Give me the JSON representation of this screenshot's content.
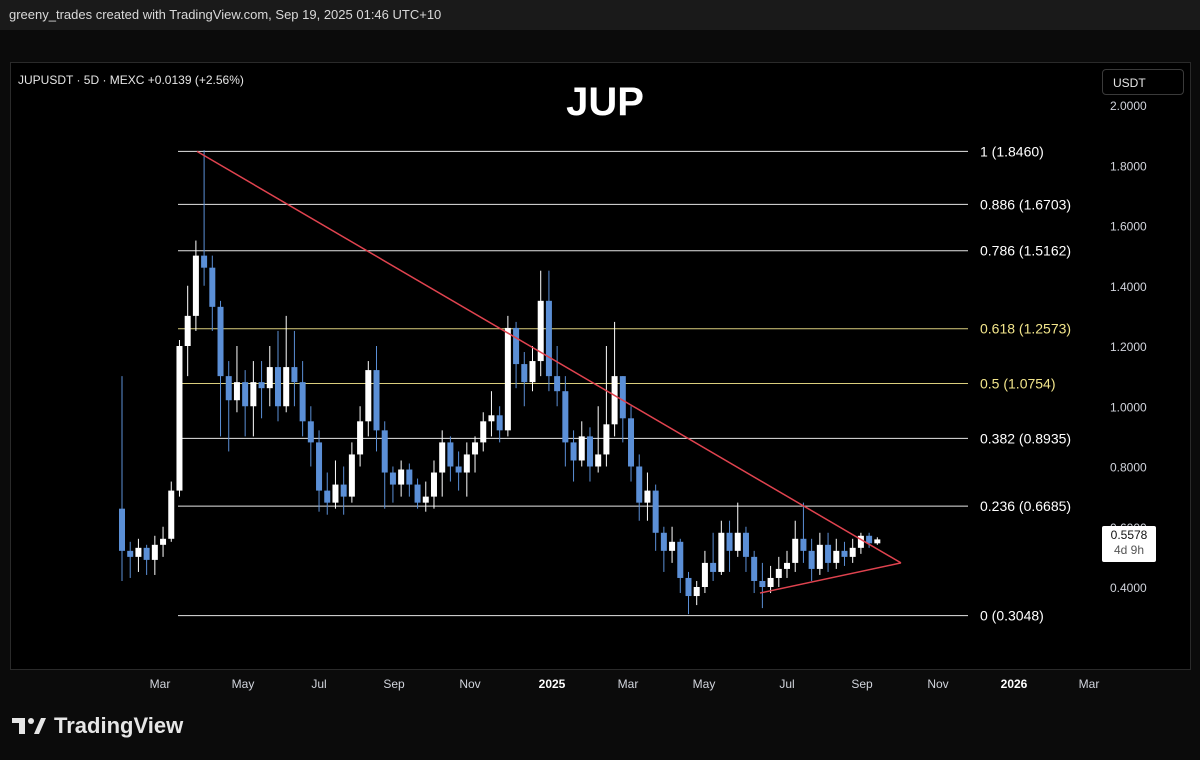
{
  "header": {
    "caption": "greeny_trades created with TradingView.com, Sep 19, 2025 01:46 UTC+10"
  },
  "chart_header": {
    "symbol_line": "JUPUSDT · 5D · MEXC  +0.0139 (+2.56%)"
  },
  "price_scale": {
    "unit_label": "USDT"
  },
  "last_price": {
    "value": "0.5578",
    "countdown": "4d 9h"
  },
  "brand": {
    "name": "TradingView"
  },
  "colors": {
    "up": "#ffffff",
    "down": "#5b8fd6",
    "trendline": "#e0434f",
    "fib_white": "#ffffff",
    "fib_yellow": "#f2e58b"
  },
  "chart_data": {
    "type": "candlestick",
    "title": "JUP",
    "y_axis": {
      "ticks": [
        "2.0000",
        "1.8000",
        "1.6000",
        "1.4000",
        "1.2000",
        "1.0000",
        "0.8000",
        "0.6000",
        "0.4000"
      ],
      "ylim": [
        0.2,
        2.05
      ]
    },
    "x_axis": {
      "ticks": [
        "Mar",
        "May",
        "Jul",
        "Sep",
        "Nov",
        "2025",
        "Mar",
        "May",
        "Jul",
        "Sep",
        "Nov",
        "2026",
        "Mar"
      ]
    },
    "fib_levels": [
      {
        "ratio": "1",
        "price": 1.846,
        "label": "1 (1.8460)"
      },
      {
        "ratio": "0.886",
        "price": 1.6703,
        "label": "0.886 (1.6703)"
      },
      {
        "ratio": "0.786",
        "price": 1.5162,
        "label": "0.786 (1.5162)"
      },
      {
        "ratio": "0.618",
        "price": 1.2573,
        "label": "0.618 (1.2573)"
      },
      {
        "ratio": "0.5",
        "price": 1.0754,
        "label": "0.5 (1.0754)"
      },
      {
        "ratio": "0.382",
        "price": 0.8935,
        "label": "0.382 (0.8935)"
      },
      {
        "ratio": "0.236",
        "price": 0.6685,
        "label": "0.236 (0.6685)"
      },
      {
        "ratio": "0",
        "price": 0.3048,
        "label": "0 (0.3048)"
      }
    ],
    "trendlines": [
      {
        "name": "descending resistance",
        "from": [
          0,
          1.846
        ],
        "to": [
          1,
          0.48
        ]
      },
      {
        "name": "rising support",
        "from": [
          0,
          0.38
        ],
        "to": [
          1,
          0.48
        ]
      }
    ],
    "candles": [
      [
        0.66,
        0.52,
        1.1,
        0.42
      ],
      [
        0.52,
        0.5,
        0.55,
        0.43
      ],
      [
        0.5,
        0.53,
        0.56,
        0.45
      ],
      [
        0.53,
        0.49,
        0.54,
        0.44
      ],
      [
        0.49,
        0.54,
        0.57,
        0.44
      ],
      [
        0.54,
        0.56,
        0.6,
        0.5
      ],
      [
        0.56,
        0.72,
        0.75,
        0.55
      ],
      [
        0.72,
        1.2,
        1.22,
        0.7
      ],
      [
        1.2,
        1.3,
        1.4,
        1.1
      ],
      [
        1.3,
        1.5,
        1.55,
        1.25
      ],
      [
        1.5,
        1.46,
        1.85,
        1.4
      ],
      [
        1.46,
        1.33,
        1.5,
        1.25
      ],
      [
        1.33,
        1.1,
        1.35,
        0.9
      ],
      [
        1.1,
        1.02,
        1.15,
        0.85
      ],
      [
        1.02,
        1.08,
        1.2,
        0.98
      ],
      [
        1.08,
        1.0,
        1.12,
        0.9
      ],
      [
        1.0,
        1.08,
        1.15,
        0.9
      ],
      [
        1.08,
        1.06,
        1.15,
        0.96
      ],
      [
        1.06,
        1.13,
        1.2,
        1.0
      ],
      [
        1.13,
        1.0,
        1.25,
        0.95
      ],
      [
        1.0,
        1.13,
        1.3,
        0.98
      ],
      [
        1.13,
        1.08,
        1.25,
        1.0
      ],
      [
        1.08,
        0.95,
        1.15,
        0.9
      ],
      [
        0.95,
        0.88,
        1.0,
        0.8
      ],
      [
        0.88,
        0.72,
        0.92,
        0.65
      ],
      [
        0.72,
        0.68,
        0.78,
        0.64
      ],
      [
        0.68,
        0.74,
        0.82,
        0.66
      ],
      [
        0.74,
        0.7,
        0.8,
        0.64
      ],
      [
        0.7,
        0.84,
        0.88,
        0.68
      ],
      [
        0.84,
        0.95,
        1.0,
        0.8
      ],
      [
        0.95,
        1.12,
        1.15,
        0.9
      ],
      [
        1.12,
        0.92,
        1.2,
        0.85
      ],
      [
        0.92,
        0.78,
        0.95,
        0.66
      ],
      [
        0.78,
        0.74,
        0.8,
        0.68
      ],
      [
        0.74,
        0.79,
        0.82,
        0.7
      ],
      [
        0.79,
        0.74,
        0.81,
        0.7
      ],
      [
        0.74,
        0.68,
        0.76,
        0.66
      ],
      [
        0.68,
        0.7,
        0.75,
        0.65
      ],
      [
        0.7,
        0.78,
        0.82,
        0.66
      ],
      [
        0.78,
        0.88,
        0.92,
        0.7
      ],
      [
        0.88,
        0.8,
        0.9,
        0.75
      ],
      [
        0.8,
        0.78,
        0.85,
        0.72
      ],
      [
        0.78,
        0.84,
        0.88,
        0.7
      ],
      [
        0.84,
        0.88,
        0.9,
        0.78
      ],
      [
        0.88,
        0.95,
        0.98,
        0.85
      ],
      [
        0.95,
        0.97,
        1.05,
        0.9
      ],
      [
        0.97,
        0.92,
        1.0,
        0.88
      ],
      [
        0.92,
        1.26,
        1.3,
        0.9
      ],
      [
        1.26,
        1.14,
        1.28,
        1.06
      ],
      [
        1.14,
        1.08,
        1.18,
        1.0
      ],
      [
        1.08,
        1.15,
        1.2,
        1.05
      ],
      [
        1.15,
        1.35,
        1.45,
        1.1
      ],
      [
        1.35,
        1.1,
        1.45,
        1.05
      ],
      [
        1.1,
        1.05,
        1.2,
        1.0
      ],
      [
        1.05,
        0.88,
        1.1,
        0.8
      ],
      [
        0.88,
        0.82,
        0.92,
        0.75
      ],
      [
        0.82,
        0.9,
        0.95,
        0.8
      ],
      [
        0.9,
        0.8,
        0.93,
        0.75
      ],
      [
        0.8,
        0.84,
        1.0,
        0.78
      ],
      [
        0.84,
        0.94,
        1.2,
        0.8
      ],
      [
        0.94,
        1.1,
        1.28,
        0.9
      ],
      [
        1.1,
        0.96,
        1.1,
        0.88
      ],
      [
        0.96,
        0.8,
        1.0,
        0.75
      ],
      [
        0.8,
        0.68,
        0.84,
        0.62
      ],
      [
        0.68,
        0.72,
        0.78,
        0.62
      ],
      [
        0.72,
        0.58,
        0.74,
        0.52
      ],
      [
        0.58,
        0.52,
        0.6,
        0.45
      ],
      [
        0.52,
        0.55,
        0.6,
        0.48
      ],
      [
        0.55,
        0.43,
        0.56,
        0.38
      ],
      [
        0.43,
        0.37,
        0.45,
        0.31
      ],
      [
        0.37,
        0.4,
        0.42,
        0.34
      ],
      [
        0.4,
        0.48,
        0.52,
        0.38
      ],
      [
        0.48,
        0.45,
        0.58,
        0.42
      ],
      [
        0.45,
        0.58,
        0.62,
        0.44
      ],
      [
        0.58,
        0.52,
        0.62,
        0.45
      ],
      [
        0.52,
        0.58,
        0.68,
        0.5
      ],
      [
        0.58,
        0.5,
        0.6,
        0.45
      ],
      [
        0.5,
        0.42,
        0.52,
        0.38
      ],
      [
        0.42,
        0.4,
        0.48,
        0.33
      ],
      [
        0.4,
        0.43,
        0.47,
        0.38
      ],
      [
        0.43,
        0.46,
        0.5,
        0.4
      ],
      [
        0.46,
        0.48,
        0.52,
        0.43
      ],
      [
        0.48,
        0.56,
        0.62,
        0.45
      ],
      [
        0.56,
        0.52,
        0.68,
        0.48
      ],
      [
        0.52,
        0.46,
        0.56,
        0.42
      ],
      [
        0.46,
        0.54,
        0.58,
        0.44
      ],
      [
        0.54,
        0.48,
        0.58,
        0.45
      ],
      [
        0.48,
        0.52,
        0.56,
        0.46
      ],
      [
        0.52,
        0.5,
        0.55,
        0.47
      ],
      [
        0.5,
        0.53,
        0.56,
        0.48
      ],
      [
        0.53,
        0.57,
        0.58,
        0.51
      ],
      [
        0.57,
        0.545,
        0.58,
        0.53
      ],
      [
        0.545,
        0.558,
        0.565,
        0.54
      ]
    ]
  }
}
